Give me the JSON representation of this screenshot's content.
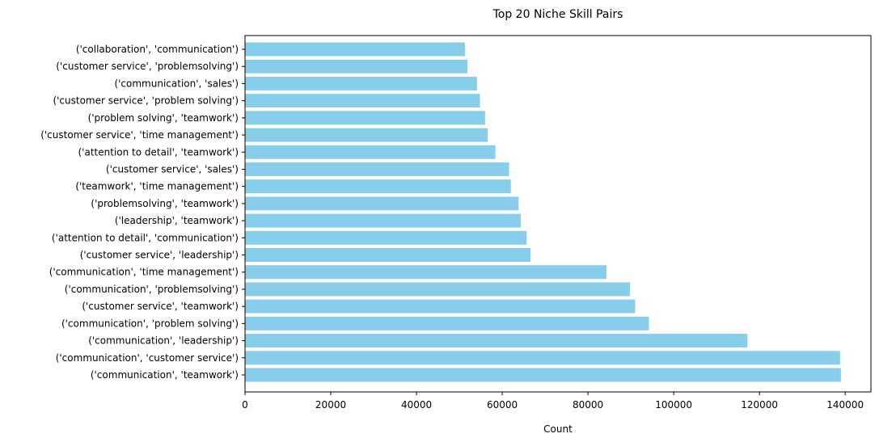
{
  "chart_data": {
    "type": "bar",
    "orientation": "horizontal",
    "title": "Top 20 Niche Skill Pairs",
    "xlabel": "Count",
    "ylabel": "",
    "xlim": [
      0,
      146000
    ],
    "x_ticks": [
      0,
      20000,
      40000,
      60000,
      80000,
      100000,
      120000,
      140000
    ],
    "bar_color": "#87ceeb",
    "grid": false,
    "legend": "none",
    "categories": [
      "('communication', 'teamwork')",
      "('communication', 'customer service')",
      "('communication', 'leadership')",
      "('communication', 'problem solving')",
      "('customer service', 'teamwork')",
      "('communication', 'problemsolving')",
      "('communication', 'time management')",
      "('customer service', 'leadership')",
      "('attention to detail', 'communication')",
      "('leadership', 'teamwork')",
      "('problemsolving', 'teamwork')",
      "('teamwork', 'time management')",
      "('customer service', 'sales')",
      "('attention to detail', 'teamwork')",
      "('customer service', 'time management')",
      "('problem solving', 'teamwork')",
      "('customer service', 'problem solving')",
      "('communication', 'sales')",
      "('customer service', 'problemsolving')",
      "('collaboration', 'communication')"
    ],
    "values": [
      139000,
      138800,
      117200,
      94200,
      91000,
      89800,
      84300,
      66600,
      65700,
      64300,
      63800,
      62000,
      61600,
      58400,
      56600,
      56000,
      54800,
      54100,
      51900,
      51300
    ]
  }
}
